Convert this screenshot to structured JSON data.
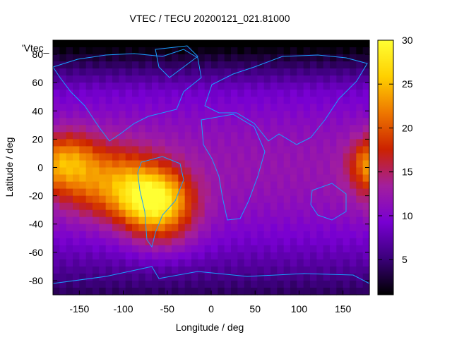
{
  "chart_data": {
    "type": "heatmap",
    "title": "VTEC / TECU 20200121_021.81000",
    "key_label": "'Vtec_",
    "xlabel": "Longitude / deg",
    "ylabel": "Latitude / deg",
    "xlim": [
      -180,
      180
    ],
    "ylim": [
      -90,
      90
    ],
    "x_ticks": [
      -150,
      -100,
      -50,
      0,
      50,
      100,
      150
    ],
    "y_ticks": [
      80,
      60,
      40,
      20,
      0,
      -20,
      -40,
      -60,
      -80
    ],
    "colorbar": {
      "min": 1,
      "max": 30,
      "ticks": [
        5,
        10,
        15,
        20,
        25,
        30
      ],
      "palette": [
        "#000000",
        "#3b007a",
        "#7800d2",
        "#a31f9d",
        "#cc2200",
        "#ee7700",
        "#ffd000",
        "#ffff33"
      ]
    },
    "ionosphere_peaks": [
      {
        "lon": -65,
        "lat": -23,
        "value": 28,
        "sx": 28,
        "sy": 14
      },
      {
        "lon": -115,
        "lat": -10,
        "value": 22,
        "sx": 42,
        "sy": 18
      },
      {
        "lon": -160,
        "lat": 5,
        "value": 20,
        "sx": 20,
        "sy": 14
      },
      {
        "lon": 175,
        "lat": 2,
        "value": 17,
        "sx": 14,
        "sy": 12
      },
      {
        "lon": -55,
        "lat": -45,
        "value": 17,
        "sx": 30,
        "sy": 14
      }
    ],
    "background_value_equator": 12,
    "background_value_pole": 4
  }
}
